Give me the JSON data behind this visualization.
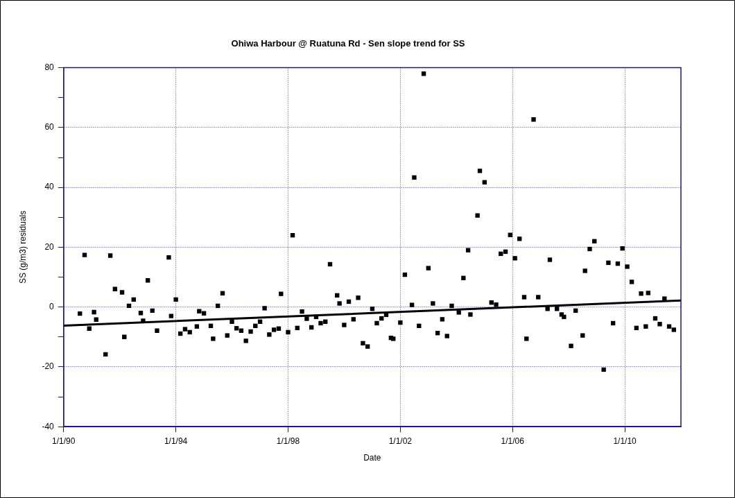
{
  "chart_data": {
    "type": "scatter",
    "title": "Ohiwa Harbour @ Ruatuna Rd - Sen slope trend for SS",
    "xlabel": "Date",
    "ylabel": "SS (g/m3) residuals",
    "xlim": [
      "1990-01-01",
      "2012-01-01"
    ],
    "xticks": [
      {
        "value": "1990-01-01",
        "label": "1/1/90"
      },
      {
        "value": "1994-01-01",
        "label": "1/1/94"
      },
      {
        "value": "1998-01-01",
        "label": "1/1/98"
      },
      {
        "value": "2002-01-01",
        "label": "1/1/02"
      },
      {
        "value": "2006-01-01",
        "label": "1/1/06"
      },
      {
        "value": "2010-01-01",
        "label": "1/1/10"
      }
    ],
    "ylim": [
      -40,
      80
    ],
    "yticks": [
      -40,
      {
        "value": -30,
        "label": null
      },
      -20,
      {
        "value": -10,
        "label": null
      },
      0,
      {
        "value": 10,
        "label": null
      },
      20,
      {
        "value": 30,
        "label": null
      },
      40,
      {
        "value": 50,
        "label": null
      },
      60,
      {
        "value": 70,
        "label": null
      },
      80
    ],
    "grid": true,
    "legend": false,
    "series": [
      {
        "type": "scatter",
        "marker": "square",
        "color": "#000000",
        "x": [
          "1990-08",
          "1990-10",
          "1990-12",
          "1991-02",
          "1991-03",
          "1991-07",
          "1991-09",
          "1991-11",
          "1992-02",
          "1992-03",
          "1992-05",
          "1992-07",
          "1992-10",
          "1992-11",
          "1993-01",
          "1993-03",
          "1993-05",
          "1993-10",
          "1993-11",
          "1994-01",
          "1994-03",
          "1994-05",
          "1994-07",
          "1994-10",
          "1994-11",
          "1995-01",
          "1995-04",
          "1995-05",
          "1995-07",
          "1995-09",
          "1995-11",
          "1996-01",
          "1996-03",
          "1996-05",
          "1996-07",
          "1996-09",
          "1996-11",
          "1997-01",
          "1997-03",
          "1997-05",
          "1997-07",
          "1997-09",
          "1997-10",
          "1998-01",
          "1998-03",
          "1998-05",
          "1998-07",
          "1998-09",
          "1998-11",
          "1999-01",
          "1999-03",
          "1999-05",
          "1999-07",
          "1999-10",
          "1999-11",
          "2000-01",
          "2000-03",
          "2000-05",
          "2000-07",
          "2000-09",
          "2000-11",
          "2001-01",
          "2001-03",
          "2001-05",
          "2001-07",
          "2001-09",
          "2001-10",
          "2002-01",
          "2002-03",
          "2002-06",
          "2002-07",
          "2002-09",
          "2002-11",
          "2003-01",
          "2003-03",
          "2003-05",
          "2003-07",
          "2003-09",
          "2003-11",
          "2004-02",
          "2004-04",
          "2004-06",
          "2004-07",
          "2004-10",
          "2004-11",
          "2005-01",
          "2005-04",
          "2005-06",
          "2005-08",
          "2005-10",
          "2005-12",
          "2006-02",
          "2006-04",
          "2006-06",
          "2006-07",
          "2006-10",
          "2006-12",
          "2007-04",
          "2007-05",
          "2007-08",
          "2007-10",
          "2007-11",
          "2008-02",
          "2008-04",
          "2008-07",
          "2008-08",
          "2008-10",
          "2008-12",
          "2009-04",
          "2009-06",
          "2009-08",
          "2009-10",
          "2009-12",
          "2010-02",
          "2010-04",
          "2010-06",
          "2010-08",
          "2010-10",
          "2010-11",
          "2011-02",
          "2011-04",
          "2011-06",
          "2011-08",
          "2011-10"
        ],
        "values": [
          -2.2,
          17.4,
          -7.2,
          -1.7,
          -4.2,
          -15.8,
          17.2,
          6.0,
          4.9,
          -10.0,
          0.4,
          2.5,
          -2.0,
          -4.6,
          8.9,
          -1.2,
          -7.9,
          16.6,
          -3.0,
          2.5,
          -8.9,
          -7.4,
          -8.4,
          -6.5,
          -1.4,
          -2.1,
          -6.3,
          -10.6,
          0.4,
          4.6,
          -9.5,
          -4.9,
          -7.1,
          -7.9,
          -11.3,
          -8.2,
          -6.3,
          -4.9,
          -0.4,
          -9.2,
          -7.6,
          -7.2,
          4.4,
          -8.4,
          24.0,
          -7.0,
          -1.5,
          -3.9,
          -6.8,
          -3.3,
          -5.4,
          -4.9,
          14.3,
          3.9,
          1.2,
          -6.0,
          1.8,
          -4.1,
          3.1,
          -12.1,
          -13.2,
          -0.6,
          -5.4,
          -3.8,
          -2.6,
          -10.3,
          -10.6,
          -5.2,
          10.8,
          0.7,
          43.3,
          -6.3,
          78.0,
          13.0,
          1.2,
          -8.7,
          -4.1,
          -9.7,
          0.4,
          -1.8,
          9.7,
          19.0,
          -2.5,
          30.6,
          45.5,
          41.7,
          1.5,
          0.8,
          17.8,
          18.5,
          24.1,
          16.3,
          22.8,
          3.3,
          -10.6,
          62.7,
          3.3,
          -0.6,
          15.8,
          -0.6,
          -2.5,
          -3.3,
          -13.0,
          -1.2,
          -9.5,
          12.1,
          19.4,
          22.0,
          -20.9,
          14.8,
          -5.4,
          14.5,
          19.6,
          13.5,
          8.4,
          -7.0,
          4.5,
          -6.5,
          4.7,
          -3.8,
          -5.7,
          2.8,
          -6.5,
          -7.6
        ]
      },
      {
        "type": "line",
        "marker": "none",
        "line_style": "solid",
        "color": "#000000",
        "x": [
          "1990-01-01",
          "2012-01-01"
        ],
        "values": [
          -6.2,
          2.2
        ]
      }
    ]
  }
}
